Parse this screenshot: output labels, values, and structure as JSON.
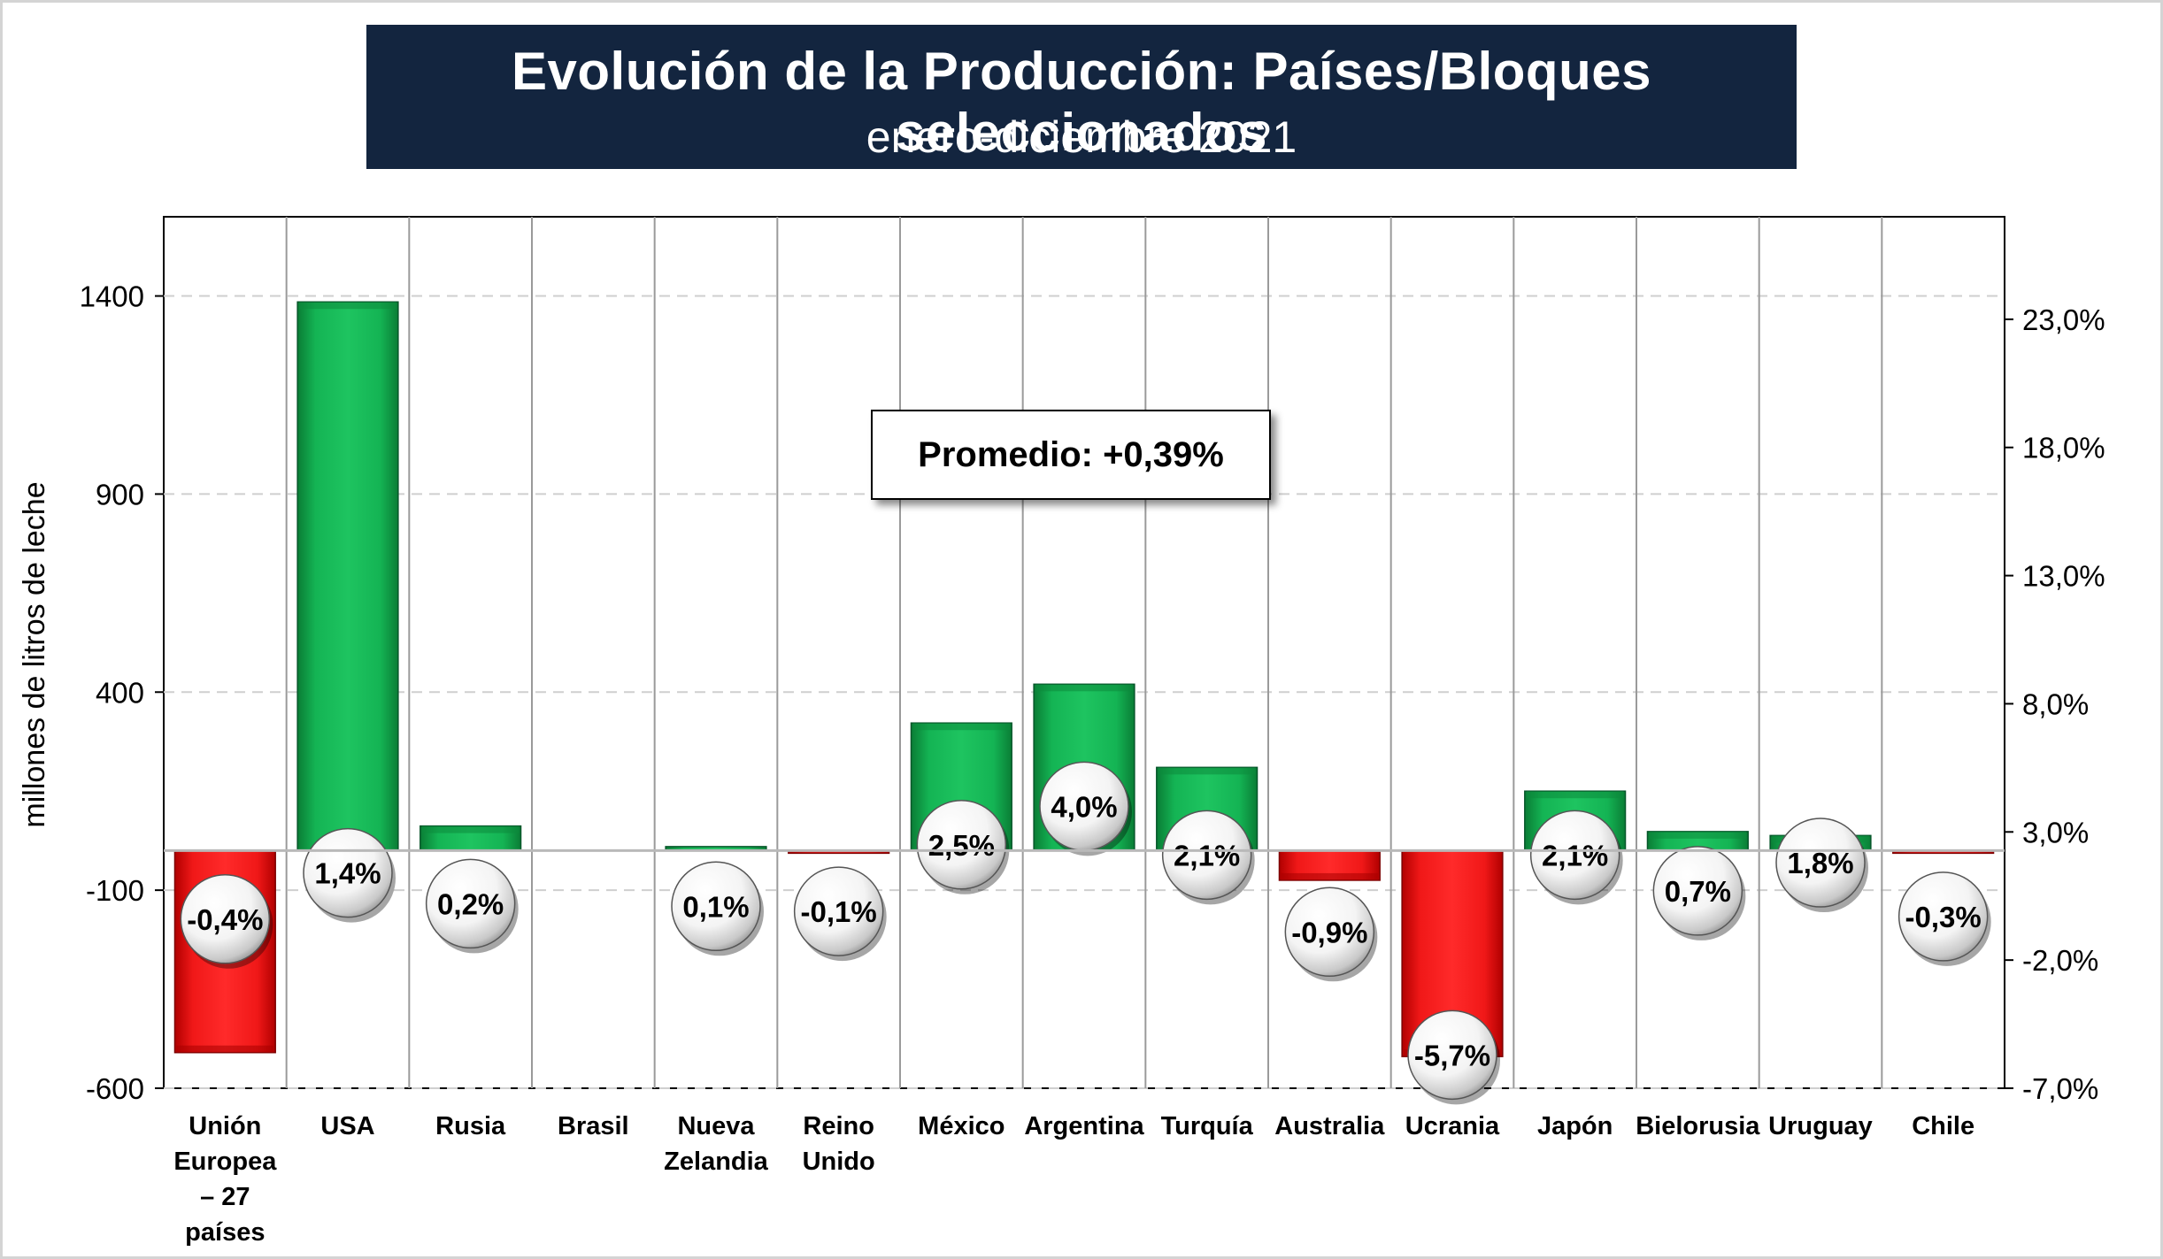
{
  "title": "Evolución de la Producción: Países/Bloques seleccionados",
  "subtitle": "enero-diciembre 2021",
  "annotation": "Promedio: +0,39%",
  "colors": {
    "title_bg": "#13253f",
    "positive": "#12a94c",
    "negative": "#ee1212"
  },
  "chart_data": {
    "type": "bar",
    "title": "Evolución de la Producción: Países/Bloques seleccionados",
    "subtitle": "enero-diciembre 2021",
    "ylabel": "millones de litros de leche",
    "y_ticks": [
      "1400",
      "900",
      "400",
      "-100",
      "-600"
    ],
    "ylim": [
      -600,
      1600
    ],
    "y2_ticks": [
      "23,0%",
      "18,0%",
      "13,0%",
      "8,0%",
      "3,0%",
      "-2,0%",
      "-7,0%"
    ],
    "y2lim": [
      -7,
      27
    ],
    "grid": true,
    "categories": [
      [
        "Unión",
        "Europea",
        "– 27",
        "países"
      ],
      [
        "USA"
      ],
      [
        "Rusia"
      ],
      [
        "Brasil"
      ],
      [
        "Nueva",
        "Zelandia"
      ],
      [
        "Reino",
        "Unido"
      ],
      [
        "México"
      ],
      [
        "Argentina"
      ],
      [
        "Turquía"
      ],
      [
        "Australia"
      ],
      [
        "Ucrania"
      ],
      [
        "Japón"
      ],
      [
        "Bielorusia"
      ],
      [
        "Uruguay"
      ],
      [
        "Chile"
      ]
    ],
    "values": [
      -510,
      1385,
      62,
      0,
      10,
      -5,
      322,
      420,
      210,
      -75,
      -520,
      150,
      48,
      38,
      -5
    ],
    "pct_values": [
      -0.4,
      1.4,
      0.2,
      null,
      0.1,
      -0.1,
      2.5,
      4.0,
      2.1,
      -0.9,
      -5.7,
      2.1,
      0.7,
      1.8,
      -0.3
    ],
    "pct_labels": [
      "-0,4%",
      "1,4%",
      "0,2%",
      "",
      "0,1%",
      "-0,1%",
      "2,5%",
      "4,0%",
      "2,1%",
      "-0,9%",
      "-5,7%",
      "2,1%",
      "0,7%",
      "1,8%",
      "-0,3%"
    ],
    "annotation": "Promedio: +0,39%"
  }
}
